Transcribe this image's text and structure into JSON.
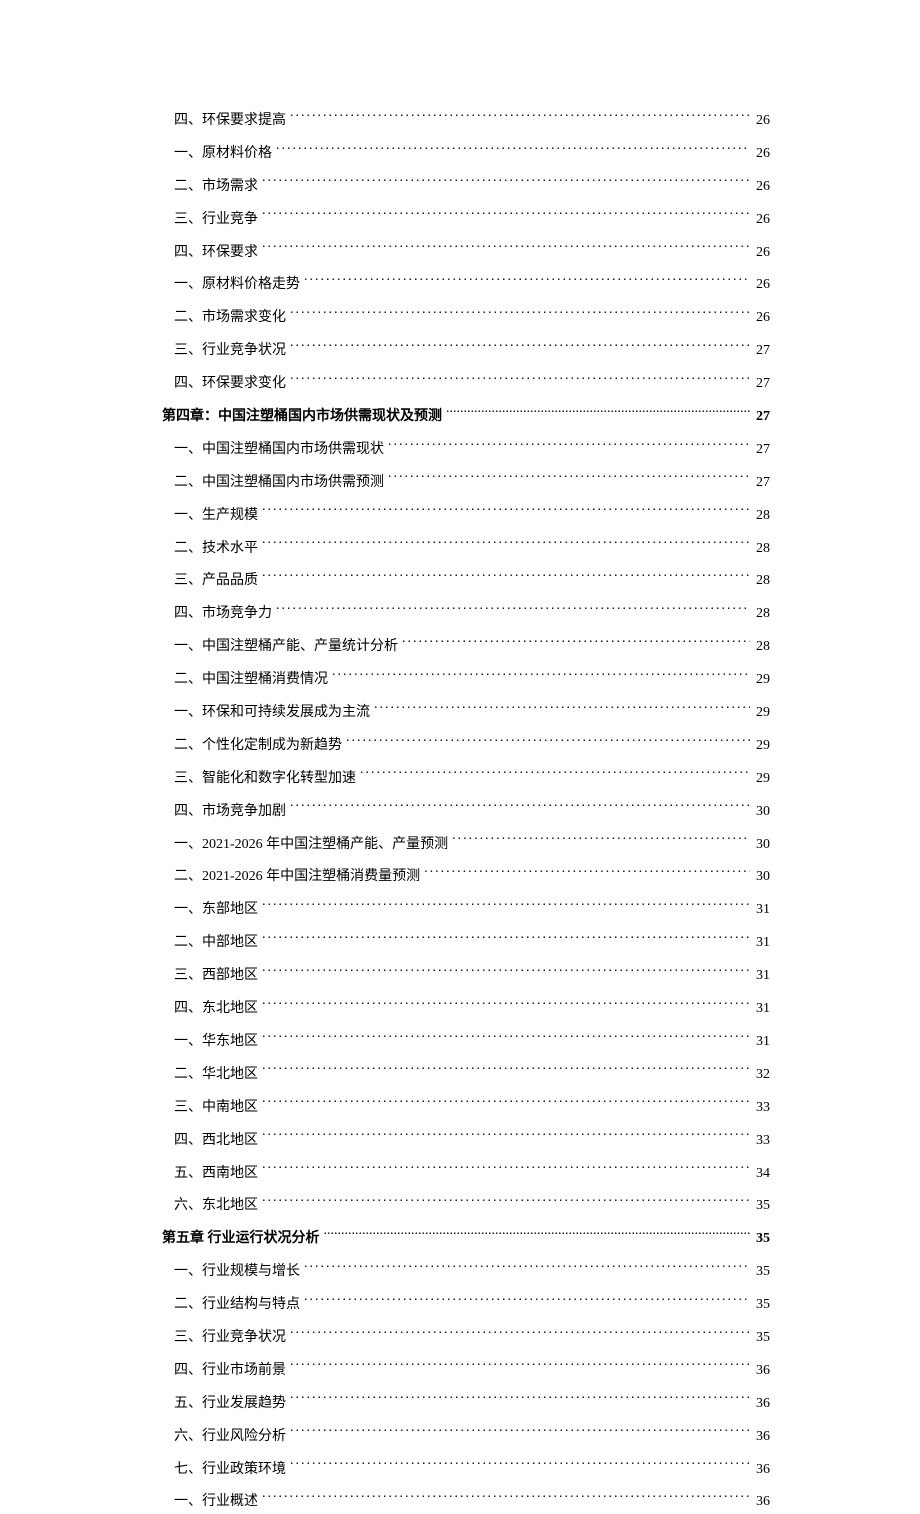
{
  "toc": {
    "entries": [
      {
        "level": 2,
        "label": "四、环保要求提高",
        "page": "26"
      },
      {
        "level": 2,
        "label": "一、原材料价格",
        "page": "26"
      },
      {
        "level": 2,
        "label": "二、市场需求",
        "page": "26"
      },
      {
        "level": 2,
        "label": "三、行业竞争",
        "page": "26"
      },
      {
        "level": 2,
        "label": "四、环保要求",
        "page": "26"
      },
      {
        "level": 2,
        "label": "一、原材料价格走势",
        "page": "26"
      },
      {
        "level": 2,
        "label": "二、市场需求变化",
        "page": "26"
      },
      {
        "level": 2,
        "label": "三、行业竞争状况",
        "page": "27"
      },
      {
        "level": 2,
        "label": "四、环保要求变化",
        "page": "27"
      },
      {
        "level": 1,
        "label": "第四章：中国注塑桶国内市场供需现状及预测",
        "page": "27"
      },
      {
        "level": 2,
        "label": "一、中国注塑桶国内市场供需现状",
        "page": "27"
      },
      {
        "level": 2,
        "label": "二、中国注塑桶国内市场供需预测",
        "page": "27"
      },
      {
        "level": 2,
        "label": "一、生产规模",
        "page": "28"
      },
      {
        "level": 2,
        "label": "二、技术水平",
        "page": "28"
      },
      {
        "level": 2,
        "label": "三、产品品质",
        "page": "28"
      },
      {
        "level": 2,
        "label": "四、市场竞争力",
        "page": "28"
      },
      {
        "level": 2,
        "label": "一、中国注塑桶产能、产量统计分析",
        "page": "28"
      },
      {
        "level": 2,
        "label": "二、中国注塑桶消费情况",
        "page": "29"
      },
      {
        "level": 2,
        "label": "一、环保和可持续发展成为主流",
        "page": "29"
      },
      {
        "level": 2,
        "label": "二、个性化定制成为新趋势",
        "page": "29"
      },
      {
        "level": 2,
        "label": "三、智能化和数字化转型加速",
        "page": "29"
      },
      {
        "level": 2,
        "label": "四、市场竞争加剧",
        "page": "30"
      },
      {
        "level": 2,
        "label": "一、2021-2026 年中国注塑桶产能、产量预测",
        "page": "30"
      },
      {
        "level": 2,
        "label": "二、2021-2026 年中国注塑桶消费量预测",
        "page": "30"
      },
      {
        "level": 2,
        "label": "一、东部地区",
        "page": "31"
      },
      {
        "level": 2,
        "label": "二、中部地区",
        "page": "31"
      },
      {
        "level": 2,
        "label": "三、西部地区",
        "page": "31"
      },
      {
        "level": 2,
        "label": "四、东北地区",
        "page": "31"
      },
      {
        "level": 2,
        "label": "一、华东地区",
        "page": "31"
      },
      {
        "level": 2,
        "label": "二、华北地区",
        "page": "32"
      },
      {
        "level": 2,
        "label": "三、中南地区",
        "page": "33"
      },
      {
        "level": 2,
        "label": "四、西北地区",
        "page": "33"
      },
      {
        "level": 2,
        "label": "五、西南地区",
        "page": "34"
      },
      {
        "level": 2,
        "label": "六、东北地区",
        "page": "35"
      },
      {
        "level": 1,
        "label": "第五章 行业运行状况分析",
        "page": "35"
      },
      {
        "level": 2,
        "label": "一、行业规模与增长",
        "page": "35"
      },
      {
        "level": 2,
        "label": "二、行业结构与特点",
        "page": "35"
      },
      {
        "level": 2,
        "label": "三、行业竞争状况",
        "page": "35"
      },
      {
        "level": 2,
        "label": "四、行业市场前景",
        "page": "36"
      },
      {
        "level": 2,
        "label": "五、行业发展趋势",
        "page": "36"
      },
      {
        "level": 2,
        "label": "六、行业风险分析",
        "page": "36"
      },
      {
        "level": 2,
        "label": "七、行业政策环境",
        "page": "36"
      },
      {
        "level": 2,
        "label": "一、行业概述",
        "page": "36"
      }
    ]
  }
}
